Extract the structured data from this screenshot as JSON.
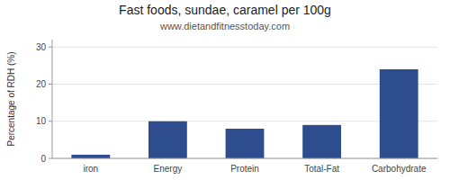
{
  "chart_data": {
    "type": "bar",
    "title": "Fast foods, sundae, caramel per 100g",
    "subtitle": "www.dietandfitnesstoday.com",
    "ylabel": "Percentage of RDH (%)",
    "categories": [
      "iron",
      "Energy",
      "Protein",
      "Total-Fat",
      "Carbohydrate"
    ],
    "values": [
      1.0,
      10.0,
      8.0,
      9.0,
      24.0
    ],
    "color": "#2e4d8e",
    "ylim": [
      0,
      32
    ],
    "yticks": [
      0,
      10,
      20,
      30
    ],
    "grid": true
  }
}
